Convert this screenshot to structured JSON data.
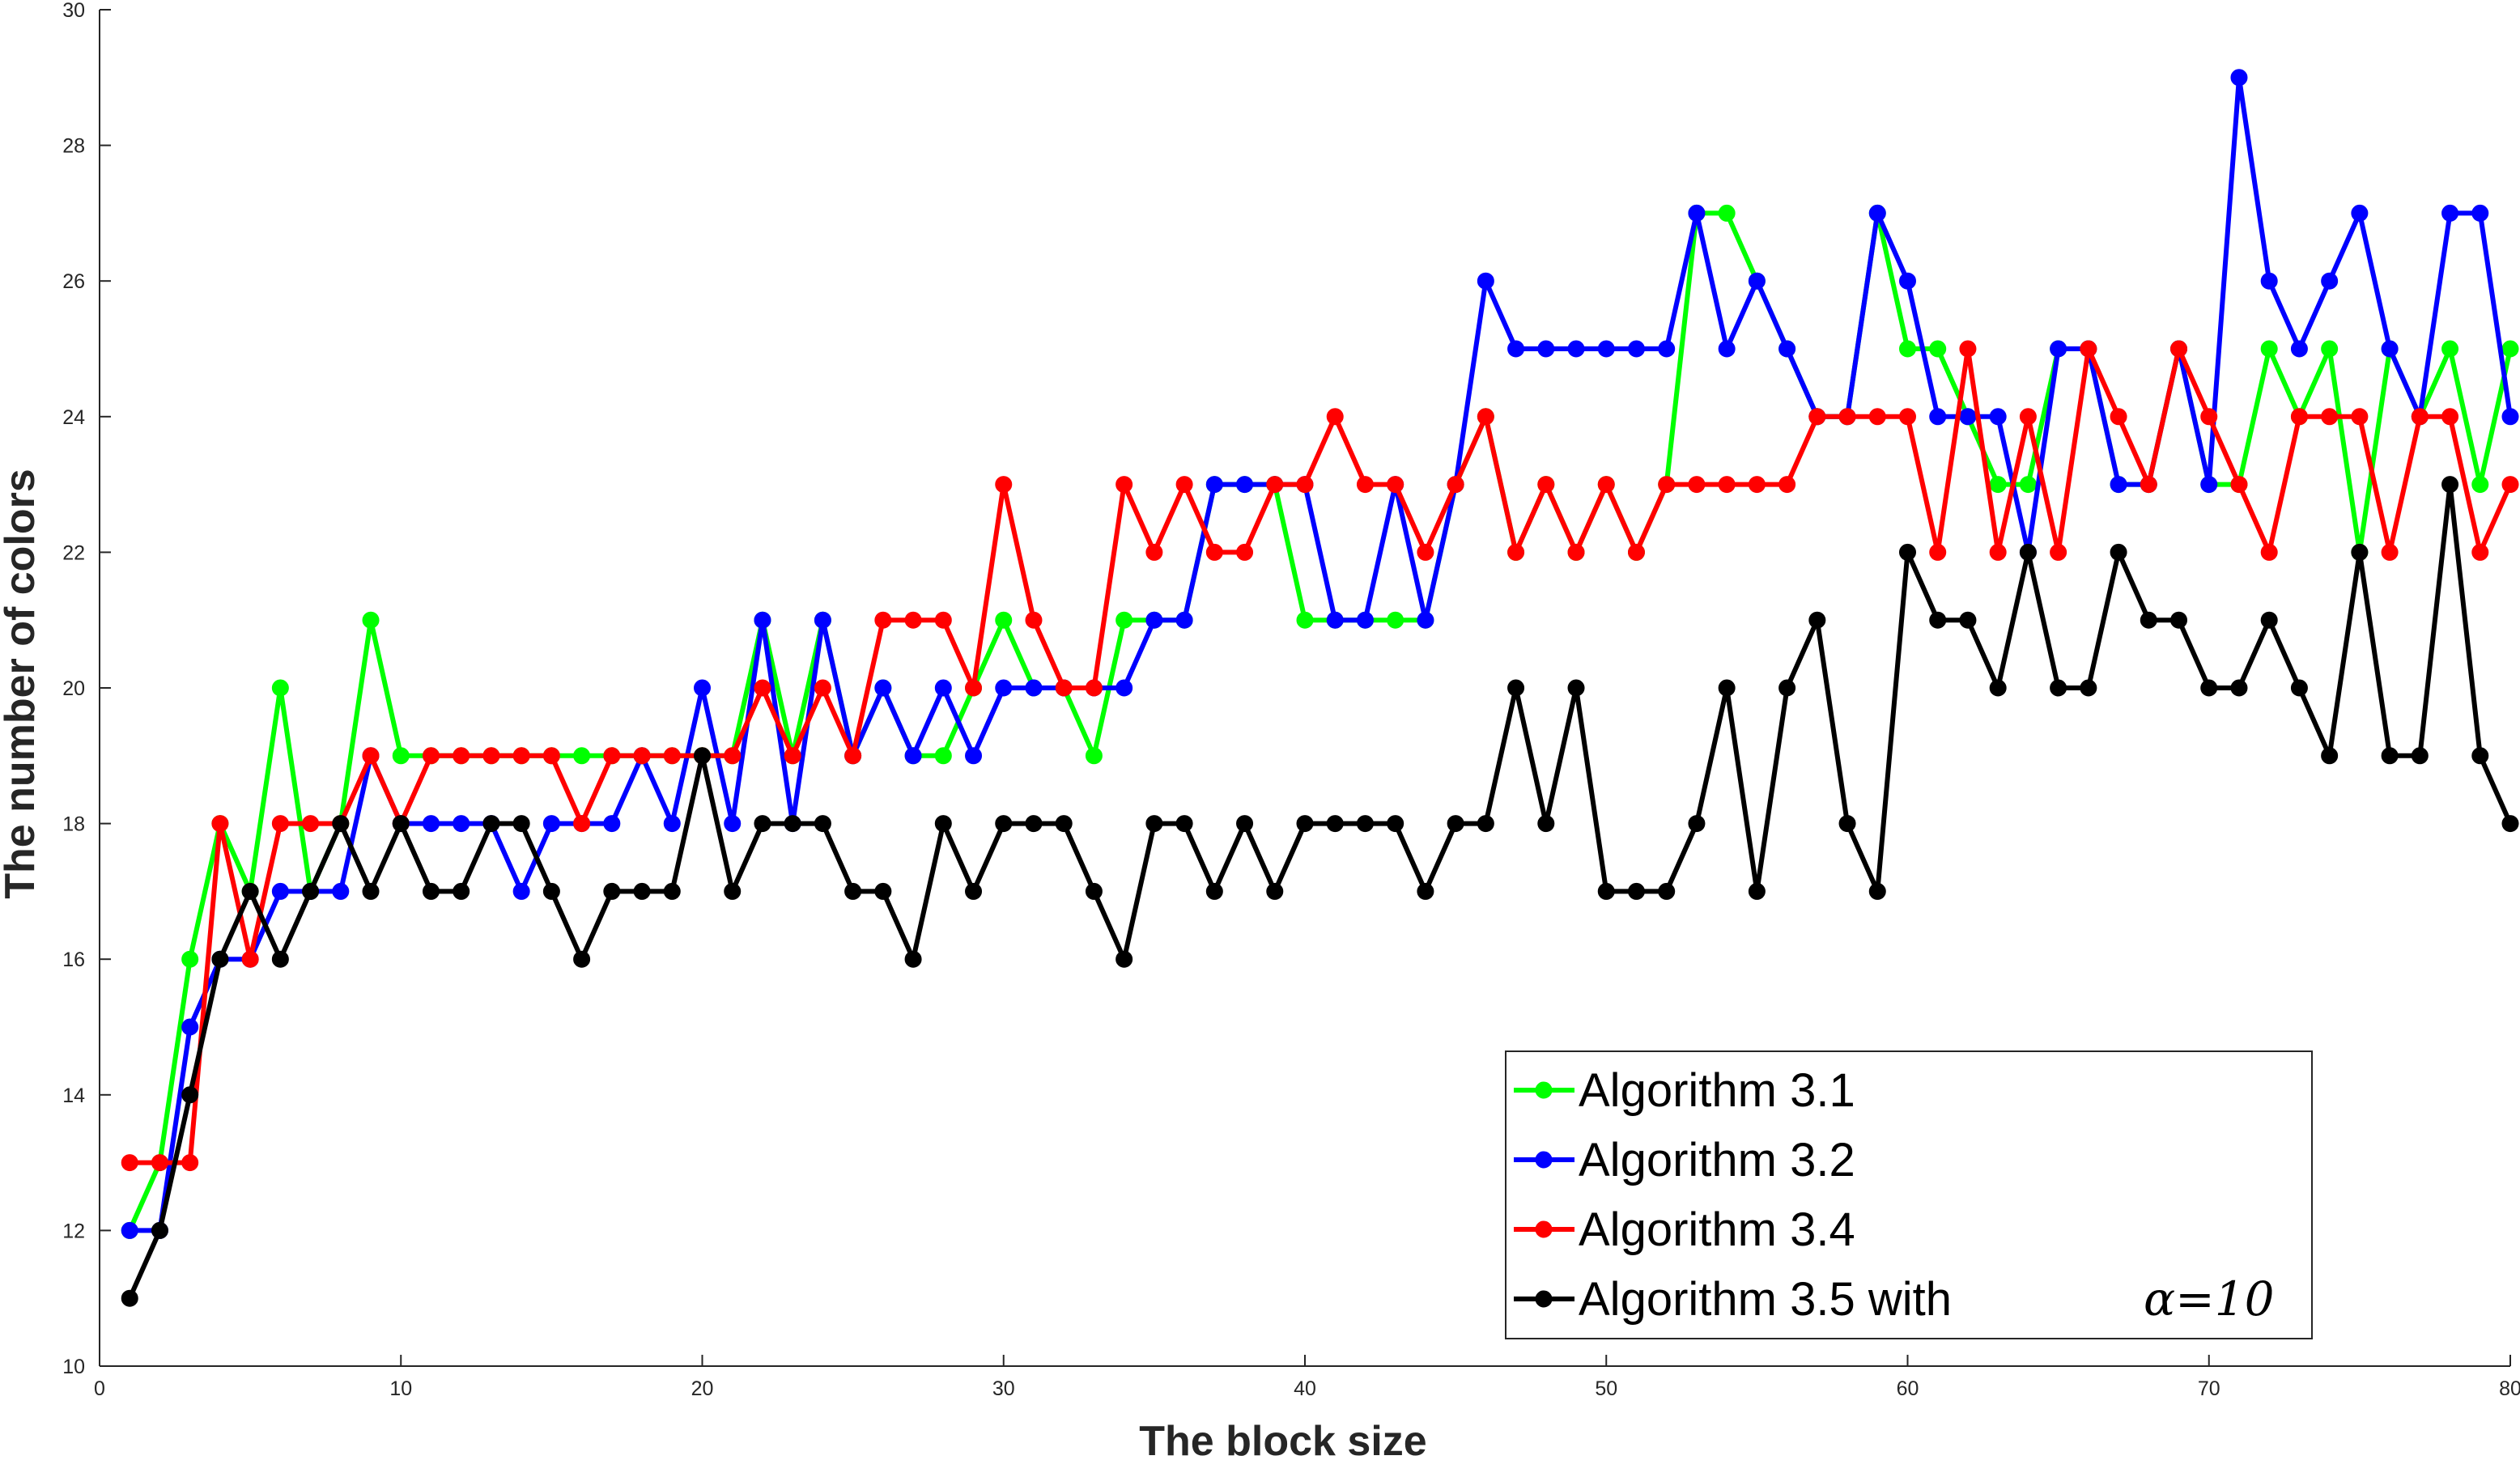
{
  "chart_data": {
    "type": "line",
    "xlabel": "The block size",
    "ylabel": "The number of colors",
    "xlim": [
      0,
      80
    ],
    "ylim": [
      10,
      30
    ],
    "xticks": [
      0,
      10,
      20,
      30,
      40,
      50,
      60,
      70,
      80
    ],
    "yticks": [
      10,
      12,
      14,
      16,
      18,
      20,
      22,
      24,
      26,
      28,
      30
    ],
    "grid": false,
    "legend_position": "bottom-right",
    "x": [
      1,
      2,
      3,
      4,
      5,
      6,
      7,
      8,
      9,
      10,
      11,
      12,
      13,
      14,
      15,
      16,
      17,
      18,
      19,
      20,
      21,
      22,
      23,
      24,
      25,
      26,
      27,
      28,
      29,
      30,
      31,
      32,
      33,
      34,
      35,
      36,
      37,
      38,
      39,
      40,
      41,
      42,
      43,
      44,
      45,
      46,
      47,
      48,
      49,
      50,
      51,
      52,
      53,
      54,
      55,
      56,
      57,
      58,
      59,
      60,
      61,
      62,
      63,
      64,
      65,
      66,
      67,
      68,
      69,
      70,
      71,
      72,
      73,
      74,
      75,
      76,
      77,
      78,
      79,
      80
    ],
    "series": [
      {
        "name": "Algorithm 3.1",
        "color": "#00ff00",
        "values": [
          12,
          13,
          16,
          18,
          17,
          20,
          17,
          18,
          21,
          19,
          19,
          19,
          19,
          19,
          19,
          19,
          19,
          19,
          19,
          19,
          19,
          21,
          19,
          21,
          19,
          20,
          19,
          19,
          20,
          21,
          20,
          20,
          19,
          21,
          21,
          21,
          23,
          23,
          23,
          21,
          21,
          21,
          21,
          21,
          23,
          24,
          22,
          23,
          22,
          23,
          22,
          23,
          27,
          27,
          26,
          25,
          24,
          24,
          27,
          25,
          25,
          24,
          23,
          23,
          25,
          25,
          23,
          23,
          25,
          23,
          23,
          25,
          24,
          25,
          22,
          25,
          24,
          25,
          23,
          25
        ]
      },
      {
        "name": "Algorithm 3.2",
        "color": "#0000ff",
        "values": [
          12,
          12,
          15,
          16,
          16,
          17,
          17,
          17,
          19,
          18,
          18,
          18,
          18,
          17,
          18,
          18,
          18,
          19,
          18,
          20,
          18,
          21,
          18,
          21,
          19,
          20,
          19,
          20,
          19,
          20,
          20,
          20,
          20,
          20,
          21,
          21,
          23,
          23,
          23,
          23,
          21,
          21,
          23,
          21,
          23,
          26,
          25,
          25,
          25,
          25,
          25,
          25,
          27,
          25,
          26,
          25,
          24,
          24,
          27,
          26,
          24,
          24,
          24,
          22,
          25,
          25,
          23,
          23,
          25,
          23,
          29,
          26,
          25,
          26,
          27,
          25,
          24,
          27,
          27,
          24
        ]
      },
      {
        "name": "Algorithm 3.4",
        "color": "#ff0000",
        "values": [
          13,
          13,
          13,
          18,
          16,
          18,
          18,
          18,
          19,
          18,
          19,
          19,
          19,
          19,
          19,
          18,
          19,
          19,
          19,
          19,
          19,
          20,
          19,
          20,
          19,
          21,
          21,
          21,
          20,
          23,
          21,
          20,
          20,
          23,
          22,
          23,
          22,
          22,
          23,
          23,
          24,
          23,
          23,
          22,
          23,
          24,
          22,
          23,
          22,
          23,
          22,
          23,
          23,
          23,
          23,
          23,
          24,
          24,
          24,
          24,
          22,
          25,
          22,
          24,
          22,
          25,
          24,
          23,
          25,
          24,
          23,
          22,
          24,
          24,
          24,
          22,
          24,
          24,
          22,
          23
        ]
      },
      {
        "name": "Algorithm 3.5 with",
        "name_suffix": "α=10",
        "color": "#000000",
        "values": [
          11,
          12,
          14,
          16,
          17,
          16,
          17,
          18,
          17,
          18,
          17,
          17,
          18,
          18,
          17,
          16,
          17,
          17,
          17,
          19,
          17,
          18,
          18,
          18,
          17,
          17,
          16,
          18,
          17,
          18,
          18,
          18,
          17,
          16,
          18,
          18,
          17,
          18,
          17,
          18,
          18,
          18,
          18,
          17,
          18,
          18,
          20,
          18,
          20,
          17,
          17,
          17,
          18,
          20,
          17,
          20,
          21,
          18,
          17,
          22,
          21,
          21,
          20,
          22,
          20,
          20,
          22,
          21,
          21,
          20,
          20,
          21,
          20,
          19,
          22,
          19,
          19,
          23,
          19,
          18
        ]
      }
    ]
  }
}
